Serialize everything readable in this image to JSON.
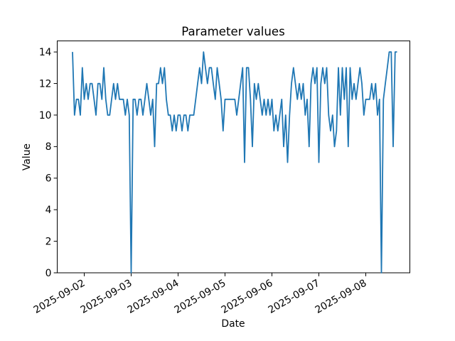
{
  "figure": {
    "title": "Parameter values",
    "xlabel": "Date",
    "ylabel": "Value"
  },
  "chart_data": {
    "type": "line",
    "title": "Parameter values",
    "xlabel": "Date",
    "ylabel": "Value",
    "series_color": "#1f77b4",
    "background_color": "#ffffff",
    "grid": false,
    "legend_position": "none",
    "x_start": "2025-09-01 18:00",
    "x_interval_hours": 1,
    "x_first_tick_hour_offset": 6,
    "x_tick_interval_hours": 24,
    "x_tick_labels": [
      "2025-09-02",
      "2025-09-03",
      "2025-09-04",
      "2025-09-05",
      "2025-09-06",
      "2025-09-07",
      "2025-09-08"
    ],
    "x_tick_rotation_deg": 30,
    "y_ticks": [
      0,
      2,
      4,
      6,
      8,
      10,
      12,
      14
    ],
    "ylim": [
      0,
      14.7
    ],
    "values": [
      14,
      10,
      11,
      11,
      10,
      13,
      11,
      12,
      11,
      12,
      12,
      11,
      10,
      12,
      12,
      11,
      13,
      11,
      10,
      10,
      11,
      12,
      11,
      12,
      11,
      11,
      11,
      10,
      11,
      10,
      0,
      11,
      11,
      10,
      11,
      11,
      10,
      11,
      12,
      11,
      10,
      11,
      8,
      12,
      12,
      13,
      12,
      13,
      11,
      10,
      10,
      9,
      10,
      9,
      10,
      10,
      9,
      10,
      10,
      9,
      10,
      10,
      10,
      11,
      12,
      13,
      12,
      14,
      13,
      12,
      13,
      13,
      12,
      11,
      13,
      12,
      11,
      9,
      11,
      11,
      11,
      11,
      11,
      11,
      10,
      11,
      12,
      13,
      7,
      13,
      13,
      11,
      8,
      12,
      11,
      12,
      11,
      10,
      11,
      10,
      11,
      10,
      11,
      9,
      10,
      9,
      10,
      11,
      8,
      10,
      7,
      10,
      12,
      13,
      12,
      11,
      12,
      11,
      12,
      10,
      11,
      8,
      12,
      13,
      12,
      13,
      7,
      12,
      13,
      12,
      13,
      10,
      9,
      10,
      8,
      9,
      13,
      10,
      13,
      11,
      13,
      8,
      13,
      11,
      12,
      11,
      12,
      13,
      12,
      10,
      11,
      11,
      11,
      12,
      11,
      12,
      10,
      11,
      0,
      11,
      12,
      13,
      14,
      14,
      8,
      14,
      14
    ]
  }
}
